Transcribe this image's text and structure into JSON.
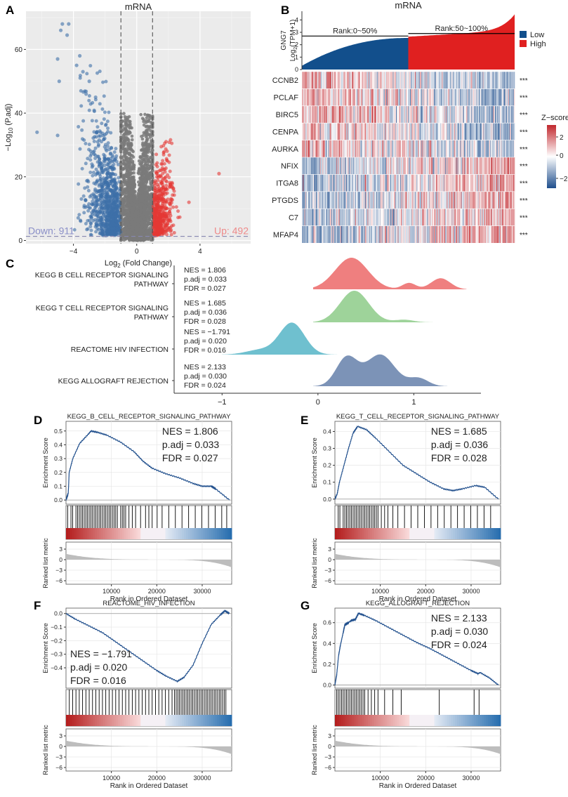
{
  "panels": {
    "A": "A",
    "B": "B",
    "C": "C",
    "D": "D",
    "E": "E",
    "F": "F",
    "G": "G"
  },
  "chart_data": [
    {
      "id": "A",
      "type": "scatter",
      "title": "mRNA",
      "xlabel_main": "Log",
      "xlabel_sub": "2",
      "xlabel_rest": " (Fold Change)",
      "ylabel_main": "−Log",
      "ylabel_sub": "10",
      "ylabel_rest": " (P.adj)",
      "xlim": [
        -7,
        7.2
      ],
      "ylim": [
        -1,
        72
      ],
      "xticks": [
        -4,
        0,
        4
      ],
      "xtick_labels": [
        "−4",
        "0",
        "4"
      ],
      "yticks": [
        0,
        20,
        40,
        60
      ],
      "ytick_labels": [
        "0",
        "20",
        "40",
        "60"
      ],
      "fc_cutoff": [
        -1,
        1
      ],
      "p_cutoff": 1.3,
      "down_label": "Down: 911",
      "up_label": "Up: 492",
      "colors": {
        "down": "#3d6fa8",
        "up": "#e53935",
        "ns": "#7a7a7a"
      },
      "highlight_points": [
        {
          "x": -4.7,
          "y": 68
        },
        {
          "x": -4.3,
          "y": 68
        },
        {
          "x": -4.8,
          "y": 66
        },
        {
          "x": -4.4,
          "y": 64.5
        },
        {
          "x": -3.6,
          "y": 58
        },
        {
          "x": -5.0,
          "y": 57
        },
        {
          "x": -3.8,
          "y": 55
        },
        {
          "x": -3.4,
          "y": 53
        },
        {
          "x": -4.9,
          "y": 50
        },
        {
          "x": -3.0,
          "y": 50
        },
        {
          "x": -3.2,
          "y": 46
        },
        {
          "x": -2.6,
          "y": 45
        },
        {
          "x": -6.3,
          "y": 34
        },
        {
          "x": -5.0,
          "y": 33
        },
        {
          "x": 5.2,
          "y": 21
        },
        {
          "x": 3.3,
          "y": 12
        }
      ]
    },
    {
      "id": "B",
      "type": "heatmap",
      "title": "mRNA",
      "bar_ylabel_top": "GNG7",
      "bar_ylabel_main": "Log",
      "bar_ylabel_sub": "2",
      "bar_ylabel_rest": "(TPM+1)",
      "bar_yticks": [
        0,
        1,
        2,
        3,
        4
      ],
      "bar_ylim": [
        0,
        4.7
      ],
      "rank_low_label": "Rank:0~50%",
      "rank_high_label": "Rank:50~100%",
      "rank_low_median": 2.7,
      "rank_high_median": 2.9,
      "legend": [
        {
          "label": "Low",
          "color": "#124f8c"
        },
        {
          "label": "High",
          "color": "#e02020"
        }
      ],
      "genes": [
        "CCNB2",
        "PCLAF",
        "BIRC5",
        "CENPA",
        "AURKA",
        "NFIX",
        "ITGA8",
        "PTGDS",
        "C7",
        "MFAP4"
      ],
      "gene_direction": [
        "down",
        "down",
        "down",
        "down",
        "down",
        "up",
        "up",
        "up",
        "up",
        "up"
      ],
      "significance": [
        "***",
        "***",
        "***",
        "***",
        "***",
        "***",
        "***",
        "***",
        "***",
        "***"
      ],
      "zscore_title": "Z−score",
      "zscore_ticks": [
        "2",
        "0",
        "−2"
      ],
      "zscore_colors": {
        "high": "#c1272d",
        "mid": "#ffffff",
        "low": "#1f4e8c"
      }
    },
    {
      "id": "C",
      "type": "ridge",
      "xlim": [
        -1.5,
        1.7
      ],
      "xticks": [
        -1,
        0,
        1
      ],
      "xtick_labels": [
        "−1",
        "0",
        "1"
      ],
      "pathways": [
        {
          "label_lines": [
            "KEGG B CELL RECEPTOR SIGNALING",
            "PATHWAY"
          ],
          "nes": "NES = 1.806",
          "padj": "p.adj = 0.033",
          "fdr": "FDR = 0.027",
          "color": "#ef7f7f",
          "range": [
            -0.05,
            1.55
          ],
          "peaks": [
            [
              0.35,
              0.17,
              1.0
            ],
            [
              0.95,
              0.07,
              0.2
            ],
            [
              1.28,
              0.1,
              0.35
            ]
          ]
        },
        {
          "label_lines": [
            "KEGG T CELL RECEPTOR SIGNALING",
            "PATHWAY"
          ],
          "nes": "NES = 1.685",
          "padj": "p.adj = 0.036",
          "fdr": "FDR = 0.028",
          "color": "#9ed39a",
          "range": [
            -0.05,
            1.55
          ],
          "peaks": [
            [
              0.38,
              0.15,
              1.0
            ],
            [
              0.9,
              0.1,
              0.08
            ]
          ]
        },
        {
          "label_lines": [
            "REACTOME HIV INFECTION"
          ],
          "nes": "NES = −1.791",
          "padj": "p.adj = 0.020",
          "fdr": "FDR = 0.016",
          "color": "#6fc0cf",
          "range": [
            -1.0,
            0.2
          ],
          "peaks": [
            [
              -0.27,
              0.13,
              1.0
            ],
            [
              -0.6,
              0.15,
              0.15
            ]
          ]
        },
        {
          "label_lines": [
            "KEGG ALLOGRAFT REJECTION"
          ],
          "nes": "NES = 2.133",
          "padj": "p.adj = 0.030",
          "fdr": "FDR = 0.024",
          "color": "#7c93b7",
          "range": [
            -0.05,
            1.35
          ],
          "peaks": [
            [
              0.3,
              0.11,
              0.9
            ],
            [
              0.65,
              0.15,
              1.0
            ],
            [
              1.05,
              0.1,
              0.25
            ]
          ]
        }
      ]
    },
    {
      "id": "D",
      "type": "gsea",
      "title": "KEGG_B_CELL_RECEPTOR_SIGNALING_PATHWAY",
      "nes": "NES = 1.806",
      "padj": "p.adj = 0.033",
      "fdr": "FDR = 0.027",
      "ylabel": "Enrichment Score",
      "yticks": [
        0.0,
        0.1,
        0.2,
        0.3,
        0.4,
        0.5
      ],
      "ytick_labels": [
        "0.0",
        "0.1",
        "0.2",
        "0.3",
        "0.4",
        "0.5"
      ],
      "ylim": [
        -0.03,
        0.57
      ],
      "curve": [
        [
          0,
          0
        ],
        [
          500,
          0.05
        ],
        [
          700,
          0.2
        ],
        [
          1500,
          0.3
        ],
        [
          3000,
          0.41
        ],
        [
          5000,
          0.48
        ],
        [
          5500,
          0.5
        ],
        [
          7000,
          0.49
        ],
        [
          9000,
          0.47
        ],
        [
          12000,
          0.42
        ],
        [
          15000,
          0.35
        ],
        [
          17000,
          0.28
        ],
        [
          19000,
          0.23
        ],
        [
          22000,
          0.19
        ],
        [
          25000,
          0.16
        ],
        [
          28000,
          0.12
        ],
        [
          30000,
          0.1
        ],
        [
          32000,
          0.1
        ],
        [
          33000,
          0.08
        ],
        [
          36000,
          0.0
        ]
      ],
      "hits": [
        0.01,
        0.03,
        0.04,
        0.06,
        0.07,
        0.08,
        0.09,
        0.1,
        0.11,
        0.12,
        0.13,
        0.14,
        0.15,
        0.16,
        0.17,
        0.18,
        0.19,
        0.2,
        0.21,
        0.22,
        0.23,
        0.24,
        0.25,
        0.26,
        0.27,
        0.28,
        0.29,
        0.3,
        0.31,
        0.33,
        0.34,
        0.35,
        0.36,
        0.38,
        0.4,
        0.42,
        0.45,
        0.48,
        0.5,
        0.52,
        0.55,
        0.58,
        0.62,
        0.66,
        0.7,
        0.74,
        0.78,
        0.82,
        0.86,
        0.9,
        0.94,
        0.97
      ],
      "metric_ylabel": "Ranked list metric",
      "metric_yticks": [
        3,
        0,
        -3,
        -6
      ],
      "metric_ytick_labels": [
        "3",
        "0",
        "−3",
        "−6"
      ],
      "xlabel": "Rank in Ordered Dataset",
      "xticks": [
        10000,
        20000,
        30000
      ],
      "xtick_labels": [
        "10000",
        "20000",
        "30000"
      ],
      "xlim": [
        0,
        36500
      ]
    },
    {
      "id": "E",
      "type": "gsea",
      "title": "KEGG_T_CELL_RECEPTOR_SIGNALING_PATHWAY",
      "nes": "NES = 1.685",
      "padj": "p.adj = 0.036",
      "fdr": "FDR = 0.028",
      "ylabel": "Enrichment Score",
      "yticks": [
        0.0,
        0.1,
        0.2,
        0.3,
        0.4
      ],
      "ytick_labels": [
        "0.0",
        "0.1",
        "0.2",
        "0.3",
        "0.4"
      ],
      "ylim": [
        -0.03,
        0.46
      ],
      "curve": [
        [
          0,
          0
        ],
        [
          500,
          0.03
        ],
        [
          1000,
          0.1
        ],
        [
          2000,
          0.2
        ],
        [
          3000,
          0.3
        ],
        [
          4000,
          0.39
        ],
        [
          5000,
          0.43
        ],
        [
          7000,
          0.41
        ],
        [
          9000,
          0.36
        ],
        [
          12000,
          0.28
        ],
        [
          15000,
          0.2
        ],
        [
          18000,
          0.15
        ],
        [
          21000,
          0.1
        ],
        [
          24000,
          0.06
        ],
        [
          26000,
          0.05
        ],
        [
          28000,
          0.06
        ],
        [
          31000,
          0.08
        ],
        [
          33000,
          0.07
        ],
        [
          36000,
          0.0
        ]
      ],
      "hits": [
        0.02,
        0.03,
        0.05,
        0.06,
        0.07,
        0.08,
        0.09,
        0.1,
        0.11,
        0.12,
        0.13,
        0.14,
        0.15,
        0.16,
        0.17,
        0.18,
        0.19,
        0.2,
        0.21,
        0.22,
        0.23,
        0.24,
        0.25,
        0.26,
        0.28,
        0.3,
        0.32,
        0.35,
        0.38,
        0.42,
        0.46,
        0.5,
        0.54,
        0.58,
        0.62,
        0.66,
        0.7,
        0.74,
        0.78,
        0.82,
        0.86,
        0.9,
        0.94
      ],
      "metric_ylabel": "Ranked list metric",
      "metric_yticks": [
        3,
        0,
        -3,
        -6
      ],
      "metric_ytick_labels": [
        "3",
        "0",
        "−3",
        "−6"
      ],
      "xlabel": "Rank in Ordered Dataset",
      "xticks": [
        10000,
        20000,
        30000
      ],
      "xtick_labels": [
        "10000",
        "20000",
        "30000"
      ],
      "xlim": [
        0,
        36500
      ]
    },
    {
      "id": "F",
      "type": "gsea",
      "title": "REACTOME_HIV_INFECTION",
      "nes": "NES = −1.791",
      "padj": "p.adj = 0.020",
      "fdr": "FDR = 0.016",
      "text_position": "bottom-left",
      "ylabel": "Enrichment Score",
      "yticks": [
        0.0,
        -0.1,
        -0.2,
        -0.3,
        -0.4
      ],
      "ytick_labels": [
        "0.0",
        "−0.1",
        "−0.2",
        "−0.3",
        "−0.4"
      ],
      "ylim": [
        -0.55,
        0.04
      ],
      "curve": [
        [
          0,
          0
        ],
        [
          2000,
          -0.04
        ],
        [
          5000,
          -0.09
        ],
        [
          8000,
          -0.14
        ],
        [
          11000,
          -0.21
        ],
        [
          14000,
          -0.28
        ],
        [
          17000,
          -0.35
        ],
        [
          20000,
          -0.42
        ],
        [
          22000,
          -0.46
        ],
        [
          24500,
          -0.5
        ],
        [
          26000,
          -0.47
        ],
        [
          28000,
          -0.38
        ],
        [
          30000,
          -0.22
        ],
        [
          32000,
          -0.08
        ],
        [
          34000,
          -0.01
        ],
        [
          35000,
          0.02
        ],
        [
          36000,
          0.0
        ]
      ],
      "hits": [
        0.02,
        0.04,
        0.06,
        0.08,
        0.1,
        0.12,
        0.14,
        0.16,
        0.18,
        0.2,
        0.22,
        0.24,
        0.26,
        0.28,
        0.3,
        0.32,
        0.34,
        0.36,
        0.38,
        0.4,
        0.42,
        0.44,
        0.46,
        0.48,
        0.5,
        0.52,
        0.54,
        0.56,
        0.58,
        0.6,
        0.62,
        0.64,
        0.655,
        0.665,
        0.675,
        0.685,
        0.695,
        0.705,
        0.715,
        0.725,
        0.735,
        0.745,
        0.755,
        0.765,
        0.775,
        0.785,
        0.795,
        0.805,
        0.815,
        0.825,
        0.835,
        0.845,
        0.855,
        0.865,
        0.875,
        0.885,
        0.895,
        0.905,
        0.915,
        0.925,
        0.935,
        0.945,
        0.955,
        0.965
      ],
      "metric_ylabel": "Ranked list metric",
      "metric_yticks": [
        3,
        0,
        -3,
        -6
      ],
      "metric_ytick_labels": [
        "3",
        "0",
        "−3",
        "−6"
      ],
      "xlabel": "Rank in Ordered Dataset",
      "xticks": [
        10000,
        20000,
        30000
      ],
      "xtick_labels": [
        "10000",
        "20000",
        "30000"
      ],
      "xlim": [
        0,
        36500
      ]
    },
    {
      "id": "G",
      "type": "gsea",
      "title": "KEGG_ALLOGRAFT_REJECTION",
      "nes": "NES = 2.133",
      "padj": "p.adj = 0.030",
      "fdr": "FDR = 0.024",
      "ylabel": "Enrichment Score",
      "yticks": [
        0.0,
        0.2,
        0.4,
        0.6
      ],
      "ytick_labels": [
        "0.0",
        "0.2",
        "0.4",
        "0.6"
      ],
      "ylim": [
        -0.03,
        0.74
      ],
      "curve": [
        [
          0,
          0
        ],
        [
          400,
          0.1
        ],
        [
          800,
          0.28
        ],
        [
          1200,
          0.38
        ],
        [
          1800,
          0.5
        ],
        [
          2200,
          0.58
        ],
        [
          3000,
          0.6
        ],
        [
          3500,
          0.62
        ],
        [
          4500,
          0.63
        ],
        [
          5200,
          0.69
        ],
        [
          6500,
          0.67
        ],
        [
          9000,
          0.62
        ],
        [
          12000,
          0.55
        ],
        [
          15000,
          0.48
        ],
        [
          18000,
          0.41
        ],
        [
          21000,
          0.35
        ],
        [
          24000,
          0.28
        ],
        [
          27000,
          0.21
        ],
        [
          30000,
          0.14
        ],
        [
          31500,
          0.11
        ],
        [
          32000,
          0.12
        ],
        [
          34000,
          0.07
        ],
        [
          36000,
          0.0
        ]
      ],
      "hits": [
        0.01,
        0.02,
        0.03,
        0.04,
        0.05,
        0.06,
        0.07,
        0.08,
        0.09,
        0.1,
        0.11,
        0.12,
        0.13,
        0.14,
        0.15,
        0.16,
        0.17,
        0.18,
        0.2,
        0.22,
        0.24,
        0.26,
        0.3,
        0.35,
        0.4,
        0.63,
        0.84,
        0.87
      ],
      "metric_ylabel": "Ranked list metric",
      "metric_yticks": [
        3,
        0,
        -3,
        -6
      ],
      "metric_ytick_labels": [
        "3",
        "0",
        "−3",
        "−6"
      ],
      "xlabel": "Rank in Ordered Dataset",
      "xticks": [
        10000,
        20000,
        30000
      ],
      "xtick_labels": [
        "10000",
        "20000",
        "30000"
      ],
      "xlim": [
        0,
        36500
      ]
    }
  ]
}
